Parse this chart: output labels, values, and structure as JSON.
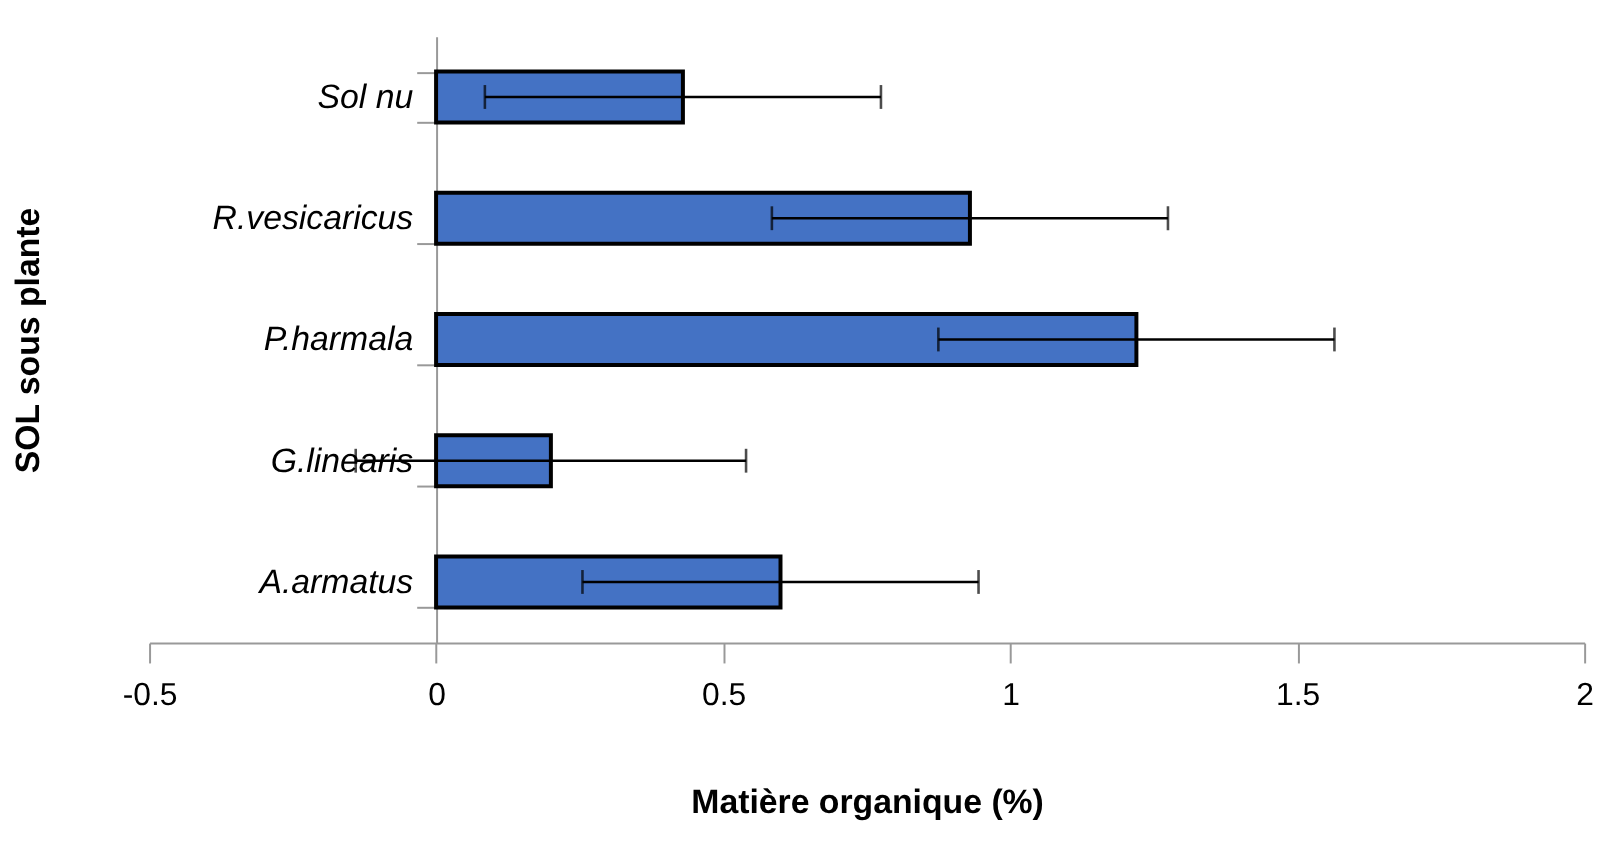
{
  "chart_data": {
    "type": "bar",
    "orientation": "horizontal",
    "xlabel": "Matière organique (%)",
    "ylabel": "SOL sous  plante",
    "categories": [
      "Sol nu",
      "R.vesicaricus",
      "P.harmala",
      "G.linearis",
      "A.armatus"
    ],
    "values": [
      0.43,
      0.93,
      1.22,
      0.2,
      0.6
    ],
    "errors": [
      0.345,
      0.345,
      0.345,
      0.34,
      0.345
    ],
    "color": "#4472c4",
    "xlim": [
      -0.5,
      2
    ],
    "xticks": [
      -0.5,
      0,
      0.5,
      1,
      1.5,
      2
    ],
    "grid": false
  }
}
